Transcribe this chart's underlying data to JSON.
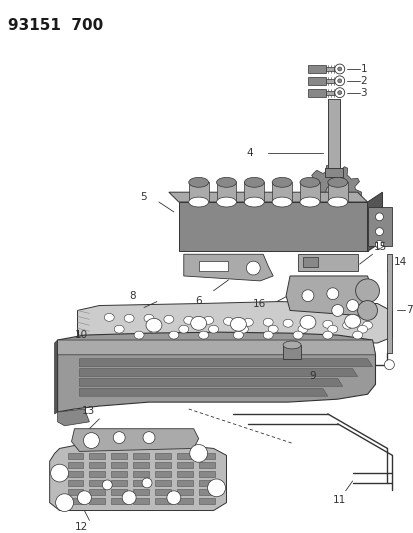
{
  "title": "93151  700",
  "bg_color": "#ffffff",
  "title_color": "#1a1a1a",
  "title_fontsize": 11,
  "line_color": "#333333",
  "label_fontsize": 7.5,
  "part_color": "#888888",
  "part_edge": "#333333",
  "part_light": "#aaaaaa",
  "part_dark": "#555555"
}
